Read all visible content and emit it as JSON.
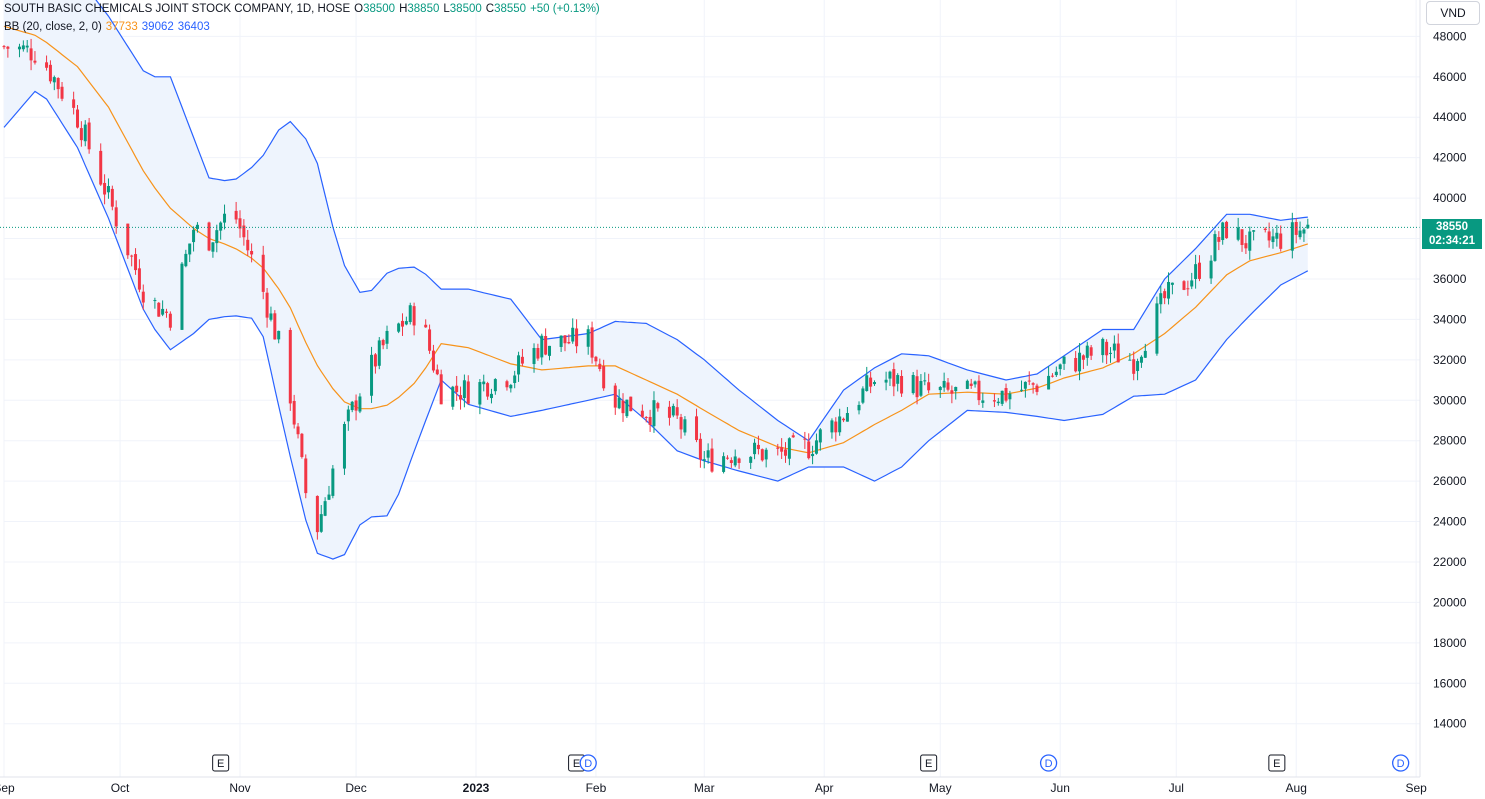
{
  "header": {
    "symbol_info": "SOUTH BASIC CHEMICALS JOINT STOCK COMPANY, 1D, HOSE",
    "open_label": "O",
    "open_value": "38500",
    "high_label": "H",
    "high_value": "38850",
    "low_label": "L",
    "low_value": "38500",
    "close_label": "C",
    "close_value": "38550",
    "change": "+50 (+0.13%)"
  },
  "indicator": {
    "label": "BB (20, close, 2, 0)",
    "basis": "37733",
    "upper": "39062",
    "lower": "36403"
  },
  "currency_button": "VND",
  "price_badge": {
    "price": "38550",
    "countdown": "02:34:21"
  },
  "colors": {
    "up": "#089981",
    "down": "#F23645",
    "basis": "#F7931A",
    "bands": "#2962FF",
    "band_fill": "#EEF4FD",
    "grid": "#F0F3FA",
    "text": "#131722"
  },
  "events": [
    {
      "type": "earnings",
      "glyph": "E",
      "date": "2022-10-27"
    },
    {
      "type": "earnings",
      "glyph": "E",
      "date": "2023-01-27"
    },
    {
      "type": "dividend",
      "glyph": "D",
      "date": "2023-01-30"
    },
    {
      "type": "earnings",
      "glyph": "E",
      "date": "2023-04-28"
    },
    {
      "type": "dividend",
      "glyph": "D",
      "date": "2023-05-29"
    },
    {
      "type": "earnings",
      "glyph": "E",
      "date": "2023-07-27"
    },
    {
      "type": "dividend",
      "glyph": "D",
      "date": "2023-08-28"
    }
  ],
  "chart_data": {
    "type": "candlestick",
    "title": "SOUTH BASIC CHEMICALS JOINT STOCK COMPANY, 1D, HOSE",
    "x_axis": {
      "start": "2022-09-01",
      "end": "2023-09-02",
      "tick_labels": [
        {
          "date": "2022-09-01",
          "label": "Sep"
        },
        {
          "date": "2022-10-01",
          "label": "Oct"
        },
        {
          "date": "2022-11-01",
          "label": "Nov"
        },
        {
          "date": "2022-12-01",
          "label": "Dec"
        },
        {
          "date": "2023-01-01",
          "label": "2023"
        },
        {
          "date": "2023-02-01",
          "label": "Feb"
        },
        {
          "date": "2023-03-01",
          "label": "Mar"
        },
        {
          "date": "2023-04-01",
          "label": "Apr"
        },
        {
          "date": "2023-05-01",
          "label": "May"
        },
        {
          "date": "2023-06-01",
          "label": "Jun"
        },
        {
          "date": "2023-07-01",
          "label": "Jul"
        },
        {
          "date": "2023-08-01",
          "label": "Aug"
        },
        {
          "date": "2023-09-01",
          "label": "Sep"
        }
      ]
    },
    "y_axis": {
      "ylim": [
        12600,
        49800
      ],
      "ticks": [
        14000,
        16000,
        18000,
        20000,
        22000,
        24000,
        26000,
        28000,
        30000,
        32000,
        34000,
        36000,
        38000,
        40000,
        42000,
        44000,
        46000,
        48000
      ],
      "grid": true,
      "position": "right"
    },
    "last_price_line": 38550,
    "anchors": [
      {
        "date": "2022-09-01",
        "close": 47500,
        "basis": 48500,
        "upper": 51500,
        "lower": 43500
      },
      {
        "date": "2022-09-10",
        "close": 47200,
        "basis": 48000,
        "upper": 50500,
        "lower": 45500
      },
      {
        "date": "2022-09-20",
        "close": 44000,
        "basis": 46500,
        "upper": 51000,
        "lower": 42500
      },
      {
        "date": "2022-09-28",
        "close": 40000,
        "basis": 44500,
        "upper": 49000,
        "lower": 39000
      },
      {
        "date": "2022-10-08",
        "close": 35000,
        "basis": 41000,
        "upper": 46000,
        "lower": 34000
      },
      {
        "date": "2022-10-14",
        "close": 34200,
        "basis": 39500,
        "upper": 46000,
        "lower": 32500
      },
      {
        "date": "2022-10-20",
        "close": 38500,
        "basis": 38500,
        "upper": 43000,
        "lower": 33300
      },
      {
        "date": "2022-10-24",
        "close": 38000,
        "basis": 38000,
        "upper": 41000,
        "lower": 34000
      },
      {
        "date": "2022-10-30",
        "close": 39500,
        "basis": 37600,
        "upper": 40800,
        "lower": 34200
      },
      {
        "date": "2022-11-06",
        "close": 36000,
        "basis": 36800,
        "upper": 41800,
        "lower": 34000
      },
      {
        "date": "2022-11-13",
        "close": 31500,
        "basis": 35000,
        "upper": 44000,
        "lower": 28000
      },
      {
        "date": "2022-11-20",
        "close": 23000,
        "basis": 32000,
        "upper": 42500,
        "lower": 22500
      },
      {
        "date": "2022-11-27",
        "close": 28000,
        "basis": 30000,
        "upper": 37000,
        "lower": 22000
      },
      {
        "date": "2022-12-03",
        "close": 31000,
        "basis": 29500,
        "upper": 35000,
        "lower": 24200
      },
      {
        "date": "2022-12-10",
        "close": 33300,
        "basis": 29800,
        "upper": 36500,
        "lower": 24300
      },
      {
        "date": "2022-12-17",
        "close": 34500,
        "basis": 31000,
        "upper": 36600,
        "lower": 28000
      },
      {
        "date": "2022-12-23",
        "close": 30500,
        "basis": 32800,
        "upper": 35500,
        "lower": 31000
      },
      {
        "date": "2022-12-30",
        "close": 30500,
        "basis": 32600,
        "upper": 35500,
        "lower": 29800
      },
      {
        "date": "2023-01-10",
        "close": 31300,
        "basis": 31800,
        "upper": 35000,
        "lower": 29200
      },
      {
        "date": "2023-01-18",
        "close": 32800,
        "basis": 31500,
        "upper": 33000,
        "lower": 29500
      },
      {
        "date": "2023-01-30",
        "close": 33000,
        "basis": 31700,
        "upper": 33300,
        "lower": 30000
      },
      {
        "date": "2023-02-06",
        "close": 30000,
        "basis": 31700,
        "upper": 33900,
        "lower": 30300
      },
      {
        "date": "2023-02-14",
        "close": 29500,
        "basis": 31000,
        "upper": 33800,
        "lower": 29000
      },
      {
        "date": "2023-02-22",
        "close": 29000,
        "basis": 30300,
        "upper": 33000,
        "lower": 27500
      },
      {
        "date": "2023-03-01",
        "close": 27000,
        "basis": 29500,
        "upper": 32000,
        "lower": 27000
      },
      {
        "date": "2023-03-10",
        "close": 27500,
        "basis": 28500,
        "upper": 30500,
        "lower": 26500
      },
      {
        "date": "2023-03-20",
        "close": 27300,
        "basis": 27700,
        "upper": 29000,
        "lower": 26000
      },
      {
        "date": "2023-03-28",
        "close": 27700,
        "basis": 27400,
        "upper": 28000,
        "lower": 26700
      },
      {
        "date": "2023-04-06",
        "close": 29300,
        "basis": 27900,
        "upper": 30500,
        "lower": 26700
      },
      {
        "date": "2023-04-14",
        "close": 31000,
        "basis": 28800,
        "upper": 31600,
        "lower": 26000
      },
      {
        "date": "2023-04-21",
        "close": 31000,
        "basis": 29500,
        "upper": 32300,
        "lower": 26700
      },
      {
        "date": "2023-04-28",
        "close": 30400,
        "basis": 30300,
        "upper": 32200,
        "lower": 28000
      },
      {
        "date": "2023-05-08",
        "close": 30300,
        "basis": 30400,
        "upper": 31500,
        "lower": 29500
      },
      {
        "date": "2023-05-18",
        "close": 30300,
        "basis": 30300,
        "upper": 31000,
        "lower": 29400
      },
      {
        "date": "2023-05-26",
        "close": 30800,
        "basis": 30600,
        "upper": 31300,
        "lower": 29200
      },
      {
        "date": "2023-06-02",
        "close": 31700,
        "basis": 31100,
        "upper": 32200,
        "lower": 29000
      },
      {
        "date": "2023-06-12",
        "close": 32500,
        "basis": 31600,
        "upper": 33500,
        "lower": 29300
      },
      {
        "date": "2023-06-20",
        "close": 32000,
        "basis": 32300,
        "upper": 33500,
        "lower": 30200
      },
      {
        "date": "2023-06-28",
        "close": 35000,
        "basis": 33300,
        "upper": 36000,
        "lower": 30300
      },
      {
        "date": "2023-07-06",
        "close": 36300,
        "basis": 34600,
        "upper": 37500,
        "lower": 31000
      },
      {
        "date": "2023-07-14",
        "close": 38500,
        "basis": 36200,
        "upper": 39200,
        "lower": 33000
      },
      {
        "date": "2023-07-20",
        "close": 37700,
        "basis": 36900,
        "upper": 39200,
        "lower": 34200
      },
      {
        "date": "2023-07-28",
        "close": 38000,
        "basis": 37300,
        "upper": 38900,
        "lower": 35700
      },
      {
        "date": "2023-08-04",
        "close": 38550,
        "basis": 37733,
        "upper": 39062,
        "lower": 36403
      }
    ]
  }
}
